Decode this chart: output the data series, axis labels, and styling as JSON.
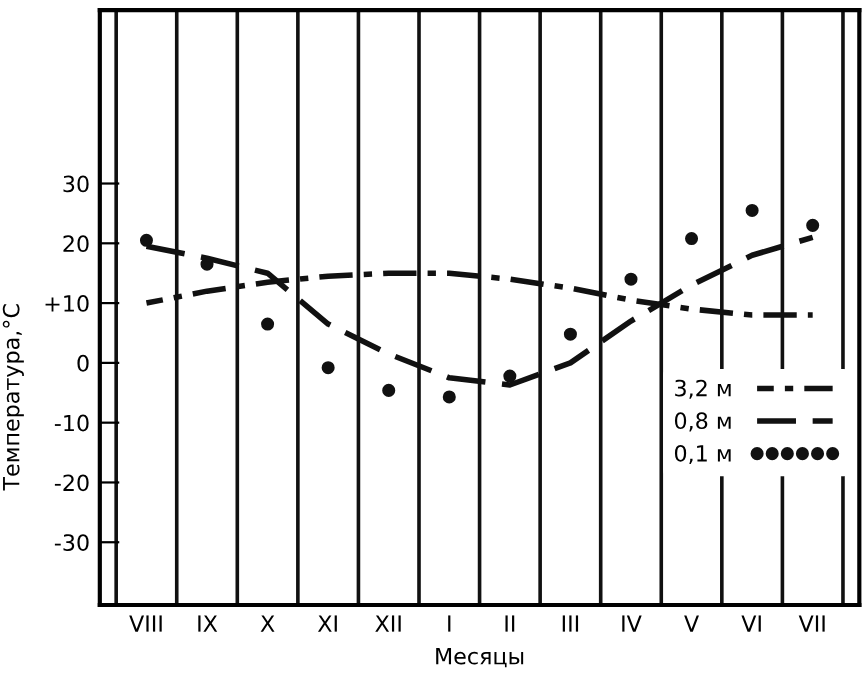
{
  "chart_data": {
    "type": "line",
    "xlabel": "Месяцы",
    "ylabel": "Температура,°C",
    "categories": [
      "VIII",
      "IX",
      "X",
      "XI",
      "XII",
      "I",
      "II",
      "III",
      "IV",
      "V",
      "VI",
      "VII"
    ],
    "ylim": [
      -40.5,
      59
    ],
    "yticks": [
      {
        "value": 30,
        "label": "30"
      },
      {
        "value": 20,
        "label": "20"
      },
      {
        "value": 10,
        "label": "+10"
      },
      {
        "value": 0,
        "label": "0"
      },
      {
        "value": -10,
        "label": "-10"
      },
      {
        "value": -20,
        "label": "-20"
      },
      {
        "value": -30,
        "label": "-30"
      }
    ],
    "grid": "x",
    "legend": "bottom right",
    "series": [
      {
        "name": "3,2 м",
        "line_style": "dashdot",
        "color": "#111111",
        "values": [
          10,
          12,
          13.5,
          14.5,
          15,
          15,
          14,
          12.5,
          10.5,
          9,
          8,
          8
        ]
      },
      {
        "name": "0,8 м",
        "line_style": "dashed",
        "color": "#111111",
        "values": [
          19.5,
          17.5,
          15,
          6.5,
          1.5,
          -2.5,
          -3.7,
          0,
          7,
          13,
          18,
          21
        ]
      },
      {
        "name": "0,1 м",
        "type": "scatter",
        "marker": "circle",
        "color": "#111111",
        "values": [
          20.5,
          16.5,
          6.5,
          -0.8,
          -4.6,
          -5.7,
          -2.2,
          4.8,
          14,
          20.8,
          25.5,
          23
        ]
      }
    ]
  }
}
